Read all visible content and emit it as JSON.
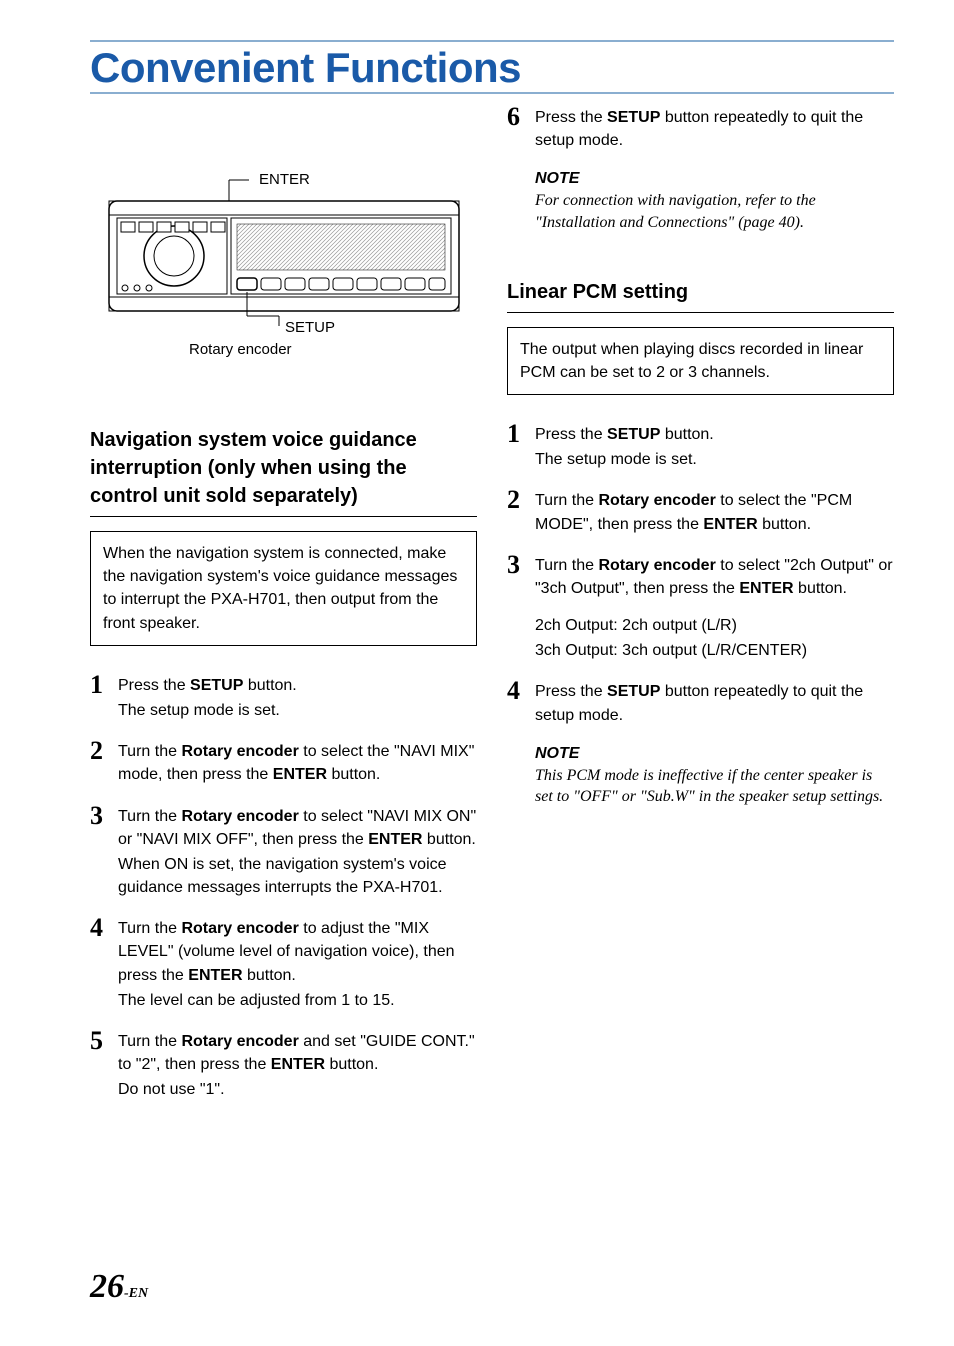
{
  "title": "Convenient Functions",
  "pageNumber": "26",
  "pageSuffix": "-EN",
  "diagram": {
    "label_enter": "ENTER",
    "label_setup": "SETUP",
    "label_rotary": "Rotary encoder",
    "stroke": "#000000",
    "fill": "#ffffff",
    "hatch": "#666666"
  },
  "left": {
    "heading": "Navigation system voice guidance interruption (only when using the control unit sold separately)",
    "box": "When the navigation system is connected, make the navigation system's voice guidance messages to interrupt the PXA-H701, then output from the front speaker.",
    "steps": [
      {
        "n": "1",
        "lines": [
          "Press the <b>SETUP</b> button.",
          "The setup mode is set."
        ]
      },
      {
        "n": "2",
        "lines": [
          "Turn the <b>Rotary encoder</b> to select the \"NAVI MIX\" mode, then press the <b>ENTER</b> button."
        ]
      },
      {
        "n": "3",
        "lines": [
          "Turn the <b>Rotary encoder</b> to select \"NAVI MIX ON\" or \"NAVI MIX OFF\", then press the <b>ENTER</b> button.",
          "When ON is set, the navigation system's voice guidance messages interrupts the PXA-H701."
        ]
      },
      {
        "n": "4",
        "lines": [
          "Turn the <b>Rotary encoder</b> to adjust the \"MIX LEVEL\" (volume level of navigation voice), then press the <b>ENTER</b> button.",
          "The level can be adjusted from 1 to 15."
        ]
      },
      {
        "n": "5",
        "lines": [
          "Turn the <b>Rotary encoder</b> and set \"GUIDE CONT.\" to \"2\", then press the <b>ENTER</b> button.",
          "Do not use \"1\"."
        ]
      }
    ]
  },
  "right": {
    "topSteps": [
      {
        "n": "6",
        "lines": [
          "Press the <b>SETUP</b> button repeatedly to quit the setup mode."
        ]
      }
    ],
    "note1": {
      "head": "NOTE",
      "body": "For connection with navigation, refer to the \"Installation and Connections\" (page 40)."
    },
    "heading2": "Linear PCM setting",
    "box2": "The output when playing discs recorded in linear PCM can be set to 2 or 3 channels.",
    "steps2": [
      {
        "n": "1",
        "lines": [
          "Press the <b>SETUP</b> button.",
          "The setup mode is set."
        ]
      },
      {
        "n": "2",
        "lines": [
          "Turn the <b>Rotary encoder</b> to select the \"PCM MODE\", then press the <b>ENTER</b> button."
        ]
      },
      {
        "n": "3",
        "lines": [
          "Turn the <b>Rotary encoder</b> to select \"2ch Output\" or \"3ch Output\", then press the <b>ENTER</b> button."
        ],
        "extra": [
          "2ch Output: 2ch output (L/R)",
          "3ch Output: 3ch output (L/R/CENTER)"
        ]
      },
      {
        "n": "4",
        "lines": [
          "Press the <b>SETUP</b> button repeatedly to quit the setup mode."
        ]
      }
    ],
    "note2": {
      "head": "NOTE",
      "body": "This PCM mode is ineffective if the center speaker is set to \"OFF\" or \"Sub.W\" in the speaker setup settings."
    }
  }
}
